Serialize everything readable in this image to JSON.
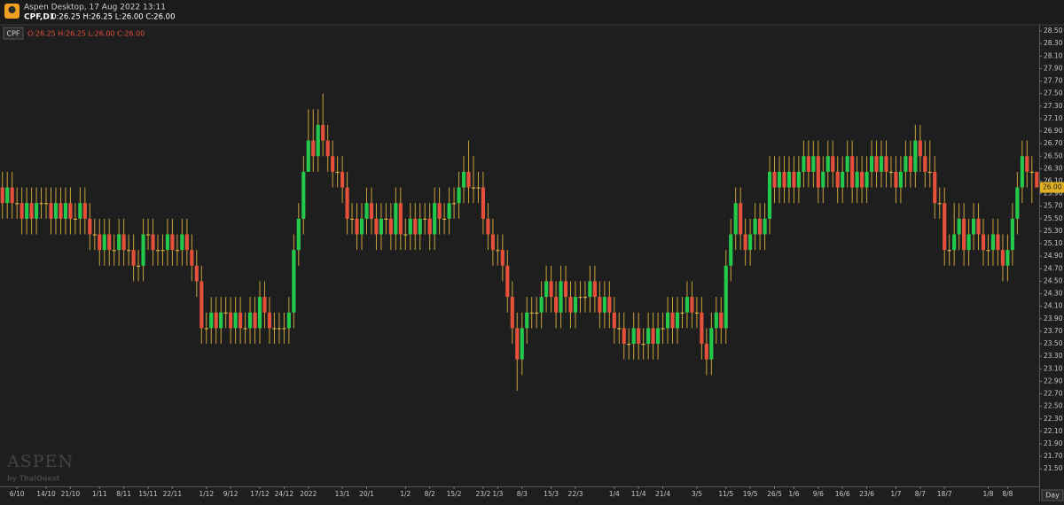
{
  "header": {
    "title": "Aspen Desktop, 17 Aug 2022 13:11",
    "symbol_timeframe": "CPF,D1",
    "ohlc_text": "O:26.25 H:26.25 L:26.00 C:26.00"
  },
  "watermark": {
    "brand": "ASPEN",
    "byline": "by ThaiQuest"
  },
  "chart_data": {
    "type": "candlestick",
    "symbol": "CPF",
    "legend_text": "O:26.25 H:26.25 L:26.00 C:26.00",
    "period_label": "Day",
    "last_price_label": "26.00",
    "up_color": "#22c94a",
    "down_color": "#e4503a",
    "wick_color": "#c9a23a",
    "doji_color": "#d4b048",
    "background": "#1e1e1e",
    "ylim": [
      21.22,
      28.6
    ],
    "yticks": [
      {
        "value": 28.5,
        "label": "28.50"
      },
      {
        "value": 28.3,
        "label": "28.30"
      },
      {
        "value": 28.1,
        "label": "28.10"
      },
      {
        "value": 27.9,
        "label": "27.90"
      },
      {
        "value": 27.7,
        "label": "27.70"
      },
      {
        "value": 27.5,
        "label": "27.50"
      },
      {
        "value": 27.3,
        "label": "27.30"
      },
      {
        "value": 27.1,
        "label": "27.10"
      },
      {
        "value": 26.9,
        "label": "26.90"
      },
      {
        "value": 26.7,
        "label": "26.70"
      },
      {
        "value": 26.5,
        "label": "26.50"
      },
      {
        "value": 26.3,
        "label": "26.30"
      },
      {
        "value": 26.1,
        "label": "26.10"
      },
      {
        "value": 25.9,
        "label": "25.90"
      },
      {
        "value": 25.7,
        "label": "25.70"
      },
      {
        "value": 25.5,
        "label": "25.50"
      },
      {
        "value": 25.3,
        "label": "25.30"
      },
      {
        "value": 25.1,
        "label": "25.10"
      },
      {
        "value": 24.9,
        "label": "24.90"
      },
      {
        "value": 24.7,
        "label": "24.70"
      },
      {
        "value": 24.5,
        "label": "24.50"
      },
      {
        "value": 24.3,
        "label": "24.30"
      },
      {
        "value": 24.1,
        "label": "24.10"
      },
      {
        "value": 23.9,
        "label": "23.90"
      },
      {
        "value": 23.7,
        "label": "23.70"
      },
      {
        "value": 23.5,
        "label": "23.50"
      },
      {
        "value": 23.3,
        "label": "23.30"
      },
      {
        "value": 23.1,
        "label": "23.10"
      },
      {
        "value": 22.9,
        "label": "22.90"
      },
      {
        "value": 22.7,
        "label": "22.70"
      },
      {
        "value": 22.5,
        "label": "22.50"
      },
      {
        "value": 22.3,
        "label": "22.30"
      },
      {
        "value": 22.1,
        "label": "22.10"
      },
      {
        "value": 21.9,
        "label": "21.90"
      },
      {
        "value": 21.7,
        "label": "21.70"
      },
      {
        "value": 21.5,
        "label": "21.50"
      }
    ],
    "categories": [
      null,
      null,
      null,
      "6/10",
      null,
      null,
      null,
      null,
      null,
      "14/10",
      null,
      null,
      null,
      null,
      "21/10",
      null,
      null,
      null,
      null,
      null,
      "1/11",
      null,
      null,
      null,
      null,
      "8/11",
      null,
      null,
      null,
      null,
      "15/11",
      null,
      null,
      null,
      null,
      "22/11",
      null,
      null,
      null,
      null,
      null,
      null,
      "1/12",
      null,
      null,
      null,
      null,
      "9/12",
      null,
      null,
      null,
      null,
      null,
      "17/12",
      null,
      null,
      null,
      null,
      "24/12",
      null,
      null,
      null,
      null,
      "2022",
      null,
      null,
      null,
      null,
      null,
      null,
      "13/1",
      null,
      null,
      null,
      null,
      "20/1",
      null,
      null,
      null,
      null,
      null,
      null,
      null,
      "1/2",
      null,
      null,
      null,
      null,
      "8/2",
      null,
      null,
      null,
      null,
      "15/2",
      null,
      null,
      null,
      null,
      null,
      "23/2",
      null,
      null,
      "1/3",
      null,
      null,
      null,
      null,
      "8/3",
      null,
      null,
      null,
      null,
      null,
      "15/3",
      null,
      null,
      null,
      null,
      "22/3",
      null,
      null,
      null,
      null,
      null,
      null,
      null,
      "1/4",
      null,
      null,
      null,
      null,
      "11/4",
      null,
      null,
      null,
      null,
      "21/4",
      null,
      null,
      null,
      null,
      null,
      null,
      "3/5",
      null,
      null,
      null,
      null,
      null,
      "11/5",
      null,
      null,
      null,
      null,
      "19/5",
      null,
      null,
      null,
      null,
      "26/5",
      null,
      null,
      null,
      "1/6",
      null,
      null,
      null,
      null,
      "9/6",
      null,
      null,
      null,
      null,
      "16/6",
      null,
      null,
      null,
      null,
      "23/6",
      null,
      null,
      null,
      null,
      null,
      "1/7",
      null,
      null,
      null,
      null,
      "8/7",
      null,
      null,
      null,
      null,
      "18/7",
      null,
      null,
      null,
      null,
      null,
      null,
      null,
      null,
      "1/8",
      null,
      null,
      null,
      "8/8",
      null,
      null,
      null,
      null,
      null,
      null
    ],
    "open": [
      26,
      25.75,
      26,
      25.75,
      25.75,
      25.5,
      25.75,
      25.5,
      25.75,
      25.75,
      25.75,
      25.5,
      25.75,
      25.5,
      25.75,
      25.5,
      25.5,
      25.75,
      25.5,
      25.25,
      25.25,
      25,
      25.25,
      25,
      25,
      25.25,
      25,
      25,
      24.75,
      24.75,
      25.25,
      25.25,
      25,
      25,
      25,
      25.25,
      25,
      25,
      25.25,
      25,
      24.75,
      24.5,
      23.75,
      23.75,
      24,
      23.75,
      24,
      24,
      23.75,
      24,
      23.75,
      23.75,
      24,
      23.75,
      24.25,
      24,
      23.75,
      23.75,
      23.75,
      23.75,
      24,
      25,
      25.5,
      26.25,
      26.75,
      26.5,
      27,
      26.75,
      26.5,
      26.25,
      26.25,
      26,
      25.5,
      25.5,
      25.25,
      25.5,
      25.75,
      25.5,
      25.25,
      25.5,
      25.5,
      25.25,
      25.75,
      25.25,
      25.25,
      25.5,
      25.25,
      25.5,
      25.5,
      25.25,
      25.75,
      25.5,
      25.5,
      25.75,
      25.75,
      26,
      26.25,
      26,
      26,
      26,
      25.5,
      25.25,
      25,
      25,
      24.75,
      24.25,
      23.75,
      23.25,
      23.75,
      24,
      24,
      24,
      24.25,
      24.5,
      24.25,
      24,
      24.5,
      24.25,
      24,
      24.25,
      24.25,
      24.25,
      24.5,
      24.25,
      24,
      24.25,
      24,
      23.75,
      23.75,
      23.5,
      23.5,
      23.75,
      23.5,
      23.5,
      23.75,
      23.5,
      23.75,
      23.75,
      24,
      23.75,
      24,
      24,
      24.25,
      24,
      24,
      23.5,
      23.25,
      23.75,
      24,
      23.75,
      24.75,
      25.25,
      25.75,
      25.25,
      25,
      25.25,
      25.5,
      25.25,
      25.5,
      26.25,
      26,
      26.25,
      26,
      26.25,
      26,
      26.25,
      26.5,
      26.25,
      26.5,
      26,
      26.25,
      26.5,
      26.25,
      26,
      26.25,
      26.5,
      26,
      26.25,
      26,
      26.25,
      26.5,
      26.25,
      26.5,
      26.25,
      26.25,
      26,
      26.25,
      26.5,
      26.25,
      26.75,
      26.5,
      26.25,
      26.25,
      25.75,
      25.75,
      25,
      25,
      25.25,
      25.5,
      25,
      25.25,
      25.5,
      25.25,
      25,
      25,
      25.25,
      25,
      24.75,
      25,
      25.5,
      26,
      26.5,
      26.25,
      26.25
    ],
    "high": [
      26.25,
      26.25,
      26.25,
      26,
      26,
      26,
      26,
      26,
      26,
      26,
      26,
      26,
      26,
      26,
      26,
      25.75,
      26,
      26,
      25.75,
      25.5,
      25.5,
      25.5,
      25.5,
      25.25,
      25.5,
      25.5,
      25.25,
      25.25,
      25,
      25.5,
      25.5,
      25.5,
      25.25,
      25.25,
      25.5,
      25.5,
      25.25,
      25.5,
      25.5,
      25.25,
      25,
      24.75,
      24,
      24.25,
      24.25,
      24.25,
      24.25,
      24.25,
      24.25,
      24.25,
      24,
      24.25,
      24.25,
      24.5,
      24.5,
      24.25,
      24,
      24,
      24,
      24.25,
      25.25,
      25.75,
      26.5,
      27.25,
      27.25,
      27.25,
      27.5,
      27,
      26.75,
      26.5,
      26.5,
      26.25,
      25.75,
      25.75,
      25.75,
      26,
      26,
      25.75,
      25.75,
      25.75,
      25.75,
      26,
      26,
      25.5,
      25.75,
      25.75,
      25.75,
      25.75,
      25.75,
      26,
      26,
      25.75,
      26,
      26,
      26.25,
      26.5,
      26.75,
      26.5,
      26.25,
      26.25,
      25.75,
      25.5,
      25.25,
      25.25,
      25,
      24.5,
      24,
      24,
      24.25,
      24.25,
      24.25,
      24.5,
      24.75,
      24.75,
      24.5,
      24.75,
      24.75,
      24.5,
      24.5,
      24.5,
      24.5,
      24.75,
      24.75,
      24.5,
      24.5,
      24.5,
      24.25,
      24,
      24,
      23.75,
      24,
      24,
      23.75,
      24,
      24,
      24,
      24,
      24.25,
      24.25,
      24.25,
      24.25,
      24.5,
      24.5,
      24.25,
      24.25,
      23.75,
      24,
      24.25,
      24.25,
      25,
      25.5,
      26,
      26,
      25.5,
      25.5,
      25.75,
      25.75,
      25.75,
      26.5,
      26.5,
      26.5,
      26.5,
      26.5,
      26.5,
      26.5,
      26.75,
      26.75,
      26.75,
      26.75,
      26.5,
      26.75,
      26.75,
      26.5,
      26.5,
      26.75,
      26.75,
      26.5,
      26.5,
      26.5,
      26.75,
      26.75,
      26.75,
      26.75,
      26.5,
      26.5,
      26.5,
      26.75,
      26.75,
      27,
      27,
      26.75,
      26.75,
      26.5,
      26,
      26,
      25.25,
      25.75,
      25.75,
      25.75,
      25.5,
      25.75,
      25.75,
      25.5,
      25.25,
      25.5,
      25.5,
      25.25,
      25.25,
      25.75,
      26.25,
      26.75,
      26.75,
      26.5,
      26.25
    ],
    "low": [
      25.5,
      25.5,
      25.5,
      25.5,
      25.25,
      25.25,
      25.25,
      25.25,
      25.5,
      25.5,
      25.25,
      25.25,
      25.25,
      25.25,
      25.25,
      25.25,
      25.25,
      25.25,
      25,
      25,
      24.75,
      24.75,
      24.75,
      24.75,
      24.75,
      24.75,
      24.75,
      24.5,
      24.5,
      24.5,
      25,
      24.75,
      24.75,
      24.75,
      24.75,
      24.75,
      24.75,
      24.75,
      24.75,
      24.5,
      24.25,
      23.5,
      23.5,
      23.5,
      23.5,
      23.5,
      23.75,
      23.5,
      23.5,
      23.5,
      23.5,
      23.5,
      23.5,
      23.5,
      23.75,
      23.5,
      23.5,
      23.5,
      23.5,
      23.5,
      23.75,
      24.75,
      25.25,
      26.25,
      26.25,
      26.25,
      26.5,
      26.25,
      26,
      26,
      25.75,
      25.25,
      25.25,
      25,
      25,
      25.25,
      25.25,
      25,
      25,
      25.25,
      25,
      25,
      25,
      25,
      25,
      25,
      25,
      25.25,
      25,
      25,
      25.25,
      25.25,
      25.25,
      25.5,
      25.5,
      25.75,
      25.75,
      25.75,
      25.75,
      25.25,
      25,
      24.75,
      24.75,
      24.5,
      24,
      23.5,
      22.75,
      23,
      23.5,
      23.75,
      23.75,
      23.75,
      24,
      24,
      23.75,
      23.75,
      24,
      23.75,
      23.75,
      24,
      24,
      24,
      24,
      23.75,
      23.75,
      23.75,
      23.5,
      23.5,
      23.25,
      23.25,
      23.25,
      23.25,
      23.25,
      23.25,
      23.25,
      23.25,
      23.5,
      23.5,
      23.5,
      23.5,
      23.75,
      23.75,
      23.75,
      23.75,
      23.25,
      23,
      23,
      23.5,
      23.5,
      23.5,
      24.5,
      25,
      25,
      24.75,
      24.75,
      25,
      25,
      25,
      25.25,
      25.75,
      25.75,
      25.75,
      25.75,
      25.75,
      25.75,
      26,
      26,
      26,
      25.75,
      25.75,
      26,
      26,
      25.75,
      25.75,
      26,
      25.75,
      25.75,
      25.75,
      25.75,
      26,
      26,
      26,
      26,
      26,
      25.75,
      25.75,
      26,
      26,
      26,
      26.25,
      26,
      26,
      25.5,
      25.5,
      24.75,
      24.75,
      24.75,
      25,
      24.75,
      24.75,
      25,
      25,
      24.75,
      24.75,
      24.75,
      24.75,
      24.5,
      24.5,
      24.75,
      25.25,
      25.75,
      26,
      25.75,
      26
    ],
    "close": [
      25.75,
      26,
      25.75,
      25.75,
      25.5,
      25.75,
      25.5,
      25.75,
      25.75,
      25.75,
      25.5,
      25.75,
      25.5,
      25.75,
      25.5,
      25.5,
      25.75,
      25.5,
      25.25,
      25.25,
      25,
      25.25,
      25,
      25,
      25.25,
      25,
      25,
      24.75,
      24.75,
      25.25,
      25.25,
      25,
      25,
      25,
      25.25,
      25,
      25,
      25.25,
      25,
      24.75,
      24.5,
      23.75,
      23.75,
      24,
      23.75,
      24,
      24,
      23.75,
      24,
      23.75,
      23.75,
      24,
      23.75,
      24.25,
      24,
      23.75,
      23.75,
      23.75,
      23.75,
      24,
      25,
      25.5,
      26.25,
      26.75,
      26.5,
      27,
      26.75,
      26.5,
      26.25,
      26.25,
      26,
      25.5,
      25.5,
      25.25,
      25.5,
      25.75,
      25.5,
      25.25,
      25.5,
      25.5,
      25.25,
      25.75,
      25.25,
      25.25,
      25.5,
      25.25,
      25.5,
      25.5,
      25.25,
      25.75,
      25.5,
      25.5,
      25.75,
      25.75,
      26,
      26.25,
      26,
      26,
      26,
      25.5,
      25.25,
      25,
      25,
      24.75,
      24.25,
      23.75,
      23.25,
      23.75,
      24,
      24,
      24,
      24.25,
      24.5,
      24.25,
      24,
      24.5,
      24.25,
      24,
      24.25,
      24.25,
      24.25,
      24.5,
      24.25,
      24,
      24.25,
      24,
      23.75,
      23.75,
      23.5,
      23.5,
      23.75,
      23.5,
      23.5,
      23.75,
      23.5,
      23.75,
      23.75,
      24,
      23.75,
      24,
      24,
      24.25,
      24,
      24,
      23.5,
      23.25,
      23.75,
      24,
      23.75,
      24.75,
      25.25,
      25.75,
      25.25,
      25,
      25.25,
      25.5,
      25.25,
      25.5,
      26.25,
      26,
      26.25,
      26,
      26.25,
      26,
      26.25,
      26.5,
      26.25,
      26.5,
      26,
      26.25,
      26.5,
      26.25,
      26,
      26.25,
      26.5,
      26,
      26.25,
      26,
      26.25,
      26.5,
      26.25,
      26.5,
      26.25,
      26.25,
      26,
      26.25,
      26.5,
      26.25,
      26.75,
      26.5,
      26.25,
      26.25,
      25.75,
      25.75,
      25,
      25,
      25.25,
      25.5,
      25,
      25.25,
      25.5,
      25.25,
      25,
      25,
      25.25,
      25,
      24.75,
      25,
      25.5,
      26,
      26.5,
      26.25,
      26.25,
      26
    ]
  }
}
